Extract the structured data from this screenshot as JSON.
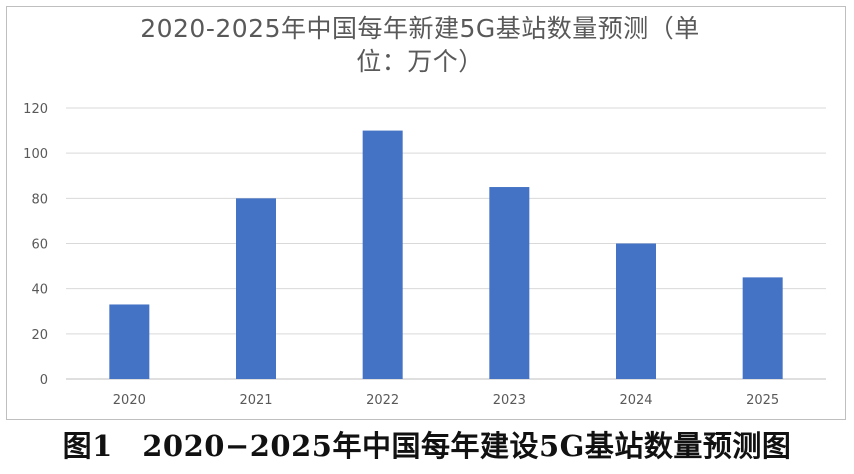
{
  "figure": {
    "caption": "图1　2020−2025年中国每年建设5G基站数量预测图"
  },
  "chart_data": {
    "type": "bar",
    "title_lines": [
      "2020-2025年中国每年新建5G基站数量预测（单",
      "位：万个）"
    ],
    "categories": [
      "2020",
      "2021",
      "2022",
      "2023",
      "2024",
      "2025"
    ],
    "values": [
      33,
      80,
      110,
      85,
      60,
      45
    ],
    "ylim": [
      0,
      120
    ],
    "yticks": [
      0,
      20,
      40,
      60,
      80,
      100,
      120
    ],
    "grid": true,
    "legend": "none",
    "bar_color": "#4472C4",
    "grid_color": "#d9d9d9",
    "tick_label_color": "#595959"
  }
}
